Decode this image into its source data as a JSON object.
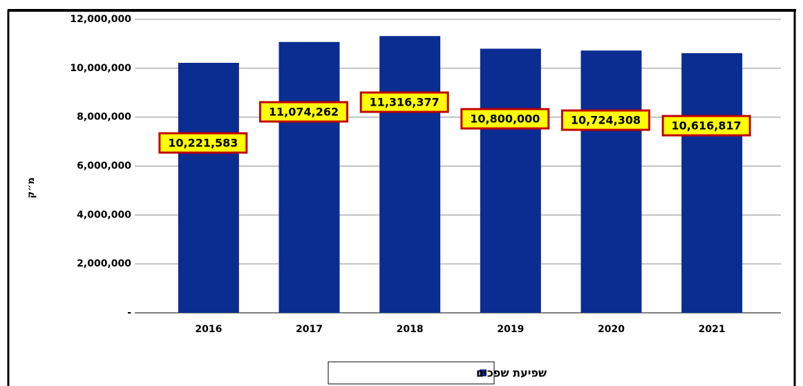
{
  "chart_data": {
    "type": "bar",
    "y_label": "מ״ק",
    "categories": [
      "2016",
      "2017",
      "2018",
      "2019",
      "2020",
      "2021"
    ],
    "series": [
      {
        "name": "שפיעת שפכים",
        "color": "#0b2d91",
        "values": [
          10221583,
          11074262,
          11316377,
          10800000,
          10724308,
          10616817
        ],
        "value_labels": [
          "10,221,583",
          "11,074,262",
          "11,316,377",
          "10,800,000",
          "10,724,308",
          "10,616,817"
        ]
      }
    ],
    "ylim": [
      0,
      12000000
    ],
    "yticks": [
      {
        "value": 0,
        "label": "-"
      },
      {
        "value": 2000000,
        "label": "2,000,000"
      },
      {
        "value": 4000000,
        "label": "4,000,000"
      },
      {
        "value": 6000000,
        "label": "6,000,000"
      },
      {
        "value": 8000000,
        "label": "8,000,000"
      },
      {
        "value": 10000000,
        "label": "10,000,000"
      },
      {
        "value": 12000000,
        "label": "12,000,000"
      }
    ],
    "grid": true
  }
}
